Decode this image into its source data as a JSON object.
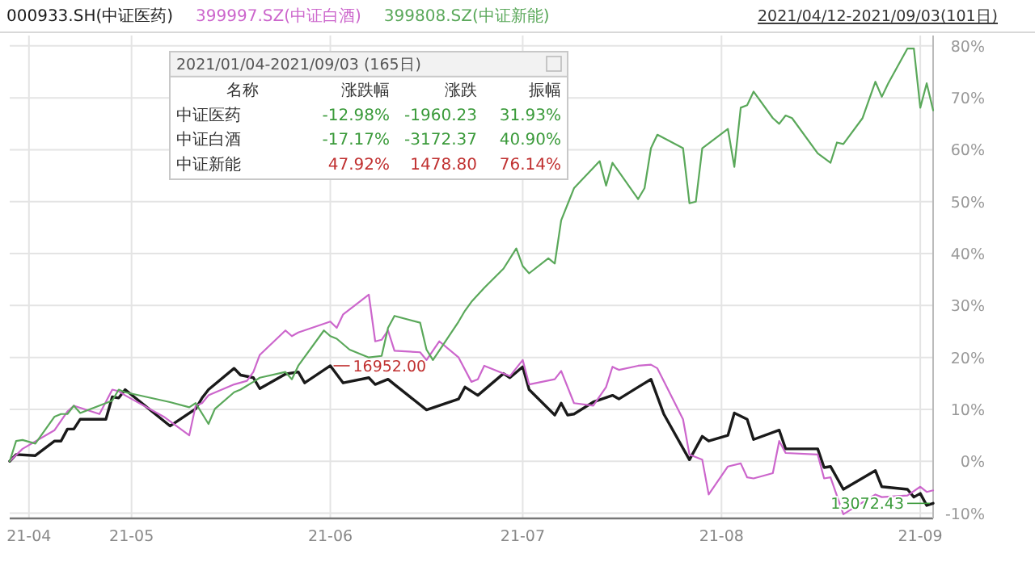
{
  "chart_data": {
    "type": "line",
    "subtitle": "2021/04/12-2021/09/03(101日)",
    "legend": "top left",
    "grid": true,
    "marker": "none",
    "line_style": "solid",
    "xlim": [
      "2021-04-12",
      "2021-09-03"
    ],
    "ylim": [
      -11,
      82
    ],
    "xticks": [
      {
        "value": "2021-04-15",
        "label": "21-04"
      },
      {
        "value": "2021-05-01",
        "label": "21-05"
      },
      {
        "value": "2021-06-01",
        "label": "21-06"
      },
      {
        "value": "2021-07-01",
        "label": "21-07"
      },
      {
        "value": "2021-08-01",
        "label": "21-08"
      },
      {
        "value": "2021-09-01",
        "label": "21-09"
      }
    ],
    "yticks": [
      {
        "value": -10,
        "label": "-10%"
      },
      {
        "value": 0,
        "label": "0%"
      },
      {
        "value": 10,
        "label": "10%"
      },
      {
        "value": 20,
        "label": "20%"
      },
      {
        "value": 30,
        "label": "30%"
      },
      {
        "value": 40,
        "label": "40%"
      },
      {
        "value": 50,
        "label": "50%"
      },
      {
        "value": 60,
        "label": "60%"
      },
      {
        "value": 70,
        "label": "70%"
      },
      {
        "value": 80,
        "label": "80%"
      }
    ],
    "series": [
      {
        "name": "000933.SH(中证医药)",
        "color": "#1a1a1a",
        "x": [
          "2021-04-12",
          "2021-04-13",
          "2021-04-16",
          "2021-04-19",
          "2021-04-20",
          "2021-04-21",
          "2021-04-22",
          "2021-04-23",
          "2021-04-27",
          "2021-04-28",
          "2021-04-29",
          "2021-04-30",
          "2021-05-07",
          "2021-05-11",
          "2021-05-12",
          "2021-05-13",
          "2021-05-17",
          "2021-05-18",
          "2021-05-20",
          "2021-05-21",
          "2021-05-25",
          "2021-05-27",
          "2021-05-28",
          "2021-06-01",
          "2021-06-03",
          "2021-06-07",
          "2021-06-08",
          "2021-06-10",
          "2021-06-11",
          "2021-06-16",
          "2021-06-21",
          "2021-06-22",
          "2021-06-24",
          "2021-06-28",
          "2021-06-29",
          "2021-07-01",
          "2021-07-02",
          "2021-07-06",
          "2021-07-07",
          "2021-07-08",
          "2021-07-09",
          "2021-07-12",
          "2021-07-15",
          "2021-07-16",
          "2021-07-19",
          "2021-07-21",
          "2021-07-23",
          "2021-07-27",
          "2021-07-29",
          "2021-07-30",
          "2021-08-02",
          "2021-08-03",
          "2021-08-05",
          "2021-08-06",
          "2021-08-10",
          "2021-08-11",
          "2021-08-16",
          "2021-08-17",
          "2021-08-18",
          "2021-08-20",
          "2021-08-25",
          "2021-08-26",
          "2021-08-30",
          "2021-08-31",
          "2021-09-01",
          "2021-09-02",
          "2021-09-03"
        ],
        "values": [
          0,
          1.3,
          1.1,
          3.9,
          3.9,
          6.2,
          6.2,
          8.1,
          8.1,
          12.4,
          12.2,
          13.8,
          6.8,
          10.1,
          12.2,
          13.8,
          17.9,
          16.6,
          16.1,
          14.0,
          16.8,
          17.2,
          15.1,
          18.4,
          15.1,
          16.1,
          14.8,
          15.8,
          14.8,
          9.9,
          12.0,
          14.3,
          12.7,
          16.9,
          16.1,
          18.2,
          13.8,
          8.9,
          11.2,
          8.9,
          9.1,
          11.4,
          12.7,
          12.0,
          14.3,
          15.8,
          9.1,
          0.3,
          4.8,
          3.9,
          5.0,
          9.3,
          8.1,
          4.2,
          6.0,
          2.4,
          2.4,
          -1.2,
          -1.0,
          -5.4,
          -1.8,
          -4.9,
          -5.4,
          -6.9,
          -6.2,
          -8.5,
          -8.1
        ]
      },
      {
        "name": "399997.SZ(中证白酒)",
        "color": "#cc66cc",
        "x": [
          "2021-04-12",
          "2021-04-14",
          "2021-04-19",
          "2021-04-21",
          "2021-04-22",
          "2021-04-26",
          "2021-04-28",
          "2021-04-29",
          "2021-04-30",
          "2021-05-06",
          "2021-05-10",
          "2021-05-11",
          "2021-05-12",
          "2021-05-13",
          "2021-05-17",
          "2021-05-19",
          "2021-05-20",
          "2021-05-21",
          "2021-05-25",
          "2021-05-26",
          "2021-05-27",
          "2021-06-01",
          "2021-06-02",
          "2021-06-03",
          "2021-06-07",
          "2021-06-08",
          "2021-06-09",
          "2021-06-10",
          "2021-06-11",
          "2021-06-15",
          "2021-06-16",
          "2021-06-18",
          "2021-06-21",
          "2021-06-23",
          "2021-06-24",
          "2021-06-25",
          "2021-06-29",
          "2021-07-01",
          "2021-07-02",
          "2021-07-06",
          "2021-07-07",
          "2021-07-09",
          "2021-07-12",
          "2021-07-14",
          "2021-07-15",
          "2021-07-16",
          "2021-07-19",
          "2021-07-21",
          "2021-07-22",
          "2021-07-26",
          "2021-07-27",
          "2021-07-29",
          "2021-07-30",
          "2021-08-02",
          "2021-08-04",
          "2021-08-05",
          "2021-08-06",
          "2021-08-09",
          "2021-08-10",
          "2021-08-11",
          "2021-08-16",
          "2021-08-17",
          "2021-08-18",
          "2021-08-20",
          "2021-08-25",
          "2021-08-26",
          "2021-08-30",
          "2021-09-01",
          "2021-09-02",
          "2021-09-03"
        ],
        "values": [
          0,
          2.4,
          6.0,
          9.6,
          10.7,
          9.1,
          13.8,
          13.5,
          12.7,
          8.6,
          5.0,
          10.7,
          11.2,
          12.7,
          14.8,
          15.5,
          17.2,
          20.5,
          25.2,
          24.1,
          24.8,
          26.9,
          25.7,
          28.3,
          32.1,
          23.1,
          23.4,
          25.2,
          21.3,
          21.0,
          19.5,
          23.1,
          20.0,
          15.3,
          15.8,
          18.4,
          16.4,
          19.5,
          14.8,
          15.8,
          17.4,
          11.2,
          10.7,
          14.3,
          18.2,
          17.6,
          18.4,
          18.6,
          17.9,
          8.1,
          1.3,
          0.3,
          -6.4,
          -1.0,
          -0.4,
          -3.1,
          -3.3,
          -2.3,
          3.9,
          1.6,
          1.3,
          -3.3,
          -3.1,
          -10.2,
          -6.4,
          -6.9,
          -6.6,
          -4.9,
          -5.9,
          -5.6
        ]
      },
      {
        "name": "399808.SZ(中证新能)",
        "color": "#5aa85a",
        "x": [
          "2021-04-12",
          "2021-04-13",
          "2021-04-14",
          "2021-04-16",
          "2021-04-19",
          "2021-04-20",
          "2021-04-21",
          "2021-04-22",
          "2021-04-23",
          "2021-04-27",
          "2021-04-28",
          "2021-04-29",
          "2021-04-30",
          "2021-05-07",
          "2021-05-10",
          "2021-05-11",
          "2021-05-13",
          "2021-05-14",
          "2021-05-17",
          "2021-05-18",
          "2021-05-20",
          "2021-05-21",
          "2021-05-25",
          "2021-05-26",
          "2021-05-27",
          "2021-05-31",
          "2021-06-01",
          "2021-06-02",
          "2021-06-04",
          "2021-06-07",
          "2021-06-09",
          "2021-06-10",
          "2021-06-11",
          "2021-06-15",
          "2021-06-16",
          "2021-06-17",
          "2021-06-21",
          "2021-06-22",
          "2021-06-23",
          "2021-06-25",
          "2021-06-28",
          "2021-06-30",
          "2021-07-01",
          "2021-07-02",
          "2021-07-05",
          "2021-07-06",
          "2021-07-07",
          "2021-07-08",
          "2021-07-09",
          "2021-07-13",
          "2021-07-14",
          "2021-07-15",
          "2021-07-19",
          "2021-07-20",
          "2021-07-21",
          "2021-07-22",
          "2021-07-26",
          "2021-07-27",
          "2021-07-28",
          "2021-07-29",
          "2021-08-02",
          "2021-08-03",
          "2021-08-04",
          "2021-08-05",
          "2021-08-06",
          "2021-08-09",
          "2021-08-10",
          "2021-08-11",
          "2021-08-12",
          "2021-08-16",
          "2021-08-18",
          "2021-08-19",
          "2021-08-20",
          "2021-08-23",
          "2021-08-25",
          "2021-08-26",
          "2021-08-27",
          "2021-08-30",
          "2021-08-31",
          "2021-09-01",
          "2021-09-02",
          "2021-09-03"
        ],
        "values": [
          0,
          3.9,
          4.1,
          3.4,
          8.6,
          9.1,
          9.1,
          10.7,
          9.3,
          11.2,
          11.7,
          13.8,
          13.3,
          11.4,
          10.4,
          11.2,
          7.2,
          10.1,
          13.3,
          13.8,
          15.3,
          16.1,
          17.2,
          15.8,
          18.4,
          25.2,
          24.1,
          23.6,
          21.5,
          20.0,
          20.3,
          25.7,
          28.0,
          26.7,
          21.5,
          19.5,
          26.9,
          29.0,
          30.7,
          33.4,
          37.1,
          41.0,
          37.6,
          36.2,
          39.1,
          38.1,
          46.4,
          49.5,
          52.6,
          57.8,
          53.1,
          57.5,
          50.5,
          52.6,
          60.3,
          62.9,
          60.3,
          49.7,
          50.0,
          60.3,
          64.0,
          56.7,
          68.1,
          68.6,
          71.2,
          66.1,
          65.0,
          66.6,
          66.1,
          59.3,
          57.5,
          61.4,
          61.1,
          66.1,
          73.1,
          70.2,
          72.8,
          79.5,
          79.5,
          68.1,
          72.8,
          67.6
        ]
      }
    ],
    "annotations": [
      {
        "text": "16952.00",
        "x": "2021-06-01",
        "y": 18.4
      },
      {
        "text": "13072.43",
        "x": "2021-09-03",
        "y": -8.1
      },
      "2021/01/04-2021/09/03 (165日)",
      "名称",
      "涨跌幅",
      "涨跌",
      "振幅",
      "中证医药",
      "-12.98%",
      "-1960.23",
      "31.93%",
      "中证白酒",
      "-17.17%",
      "-3172.37",
      "40.90%",
      "中证新能",
      "47.92%",
      "1478.80",
      "76.14%"
    ]
  }
}
